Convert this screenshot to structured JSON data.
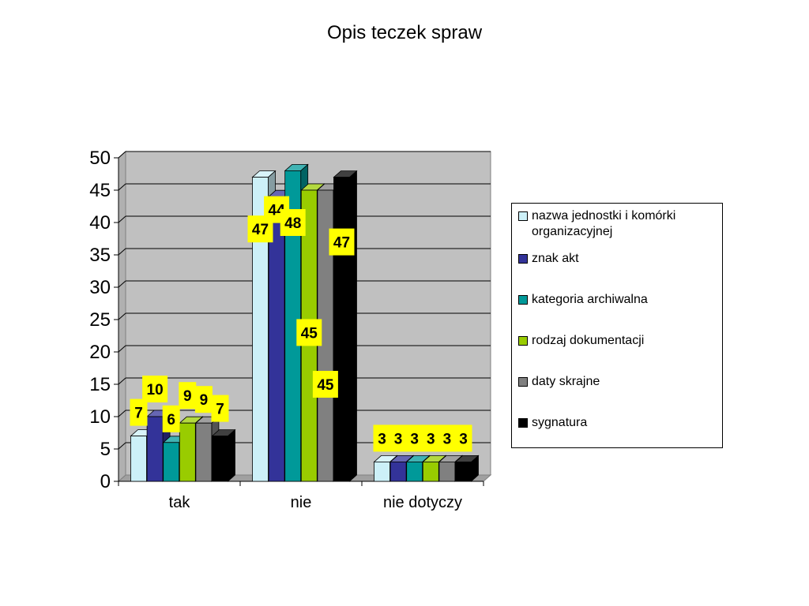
{
  "chart_data": {
    "type": "bar",
    "title": "Opis teczek spraw",
    "xlabel": "",
    "ylabel": "",
    "categories": [
      "tak",
      "nie",
      "nie dotyczy"
    ],
    "ylim": [
      0,
      50
    ],
    "yticks": [
      0,
      5,
      10,
      15,
      20,
      25,
      30,
      35,
      40,
      45,
      50
    ],
    "grid": true,
    "legend_position": "right",
    "data_labels": true,
    "series": [
      {
        "name": "nazwa jednostki i komórki organizacyjnej",
        "values": [
          7,
          47,
          3
        ],
        "color": "#ccf0f8"
      },
      {
        "name": "znak akt",
        "values": [
          10,
          44,
          3
        ],
        "color": "#333399"
      },
      {
        "name": "kategoria archiwalna",
        "values": [
          6,
          48,
          3
        ],
        "color": "#009999"
      },
      {
        "name": "rodzaj dokumentacji",
        "values": [
          9,
          45,
          3
        ],
        "color": "#99cc00"
      },
      {
        "name": "daty skrajne",
        "values": [
          9,
          45,
          3
        ],
        "color": "#808080"
      },
      {
        "name": "sygnatura",
        "values": [
          7,
          47,
          3
        ],
        "color": "#000000"
      }
    ]
  },
  "colors": {
    "plot_wall": "#c0c0c0",
    "data_label_bg": "#ffff00"
  }
}
